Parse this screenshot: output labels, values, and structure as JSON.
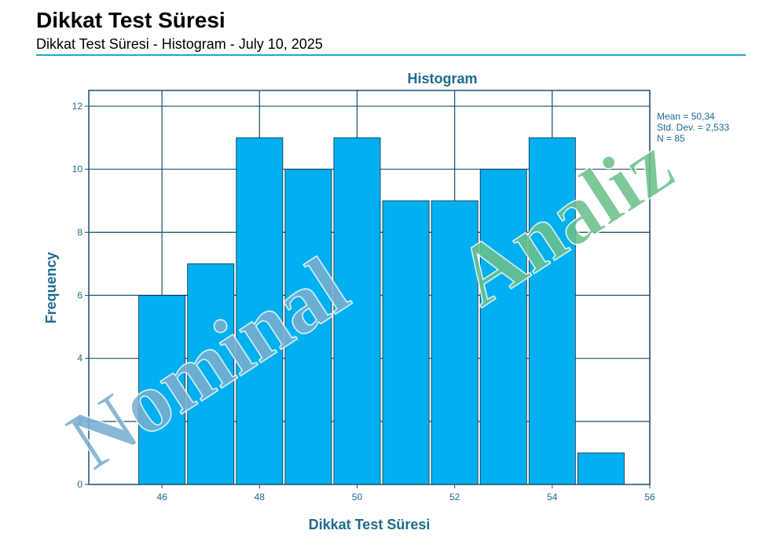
{
  "header": {
    "title": "Dikkat Test Süresi",
    "subtitle": "Dikkat Test Süresi - Histogram - July 10, 2025"
  },
  "watermark": {
    "word1": "Nominal",
    "word2": "Analiz",
    "color1": "#7aaed0",
    "color2": "#6cc08a"
  },
  "colors": {
    "bar_fill": "#00b0f0",
    "axis_text": "#1e6b8f",
    "grid": "#1b4f72",
    "rule": "#1aa7d8"
  },
  "chart_data": {
    "type": "bar",
    "title": "Histogram",
    "xlabel": "Dikkat Test Süresi",
    "ylabel": "Frequency",
    "xlim": [
      44.5,
      56
    ],
    "ylim": [
      0,
      12.5
    ],
    "xticks": [
      46,
      48,
      50,
      52,
      54,
      56
    ],
    "yticks": [
      0,
      2,
      4,
      6,
      8,
      10,
      12
    ],
    "bin_width": 1,
    "grid": true,
    "bins": [
      {
        "center": 46,
        "value": 6
      },
      {
        "center": 47,
        "value": 7
      },
      {
        "center": 48,
        "value": 11
      },
      {
        "center": 49,
        "value": 10
      },
      {
        "center": 50,
        "value": 11
      },
      {
        "center": 51,
        "value": 9
      },
      {
        "center": 52,
        "value": 9
      },
      {
        "center": 53,
        "value": 10
      },
      {
        "center": 54,
        "value": 11
      },
      {
        "center": 55,
        "value": 1
      }
    ],
    "stats": {
      "mean_label": "Mean = 50,34",
      "sd_label": "Std. Dev. = 2,533",
      "n_label": "N = 85"
    }
  }
}
